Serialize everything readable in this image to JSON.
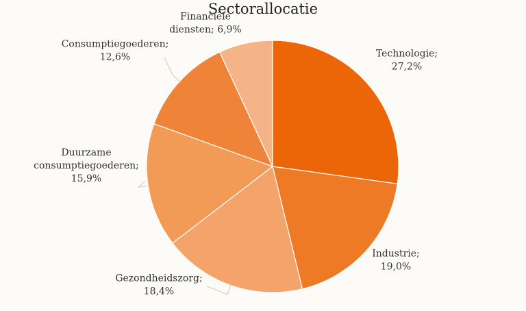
{
  "chart_data": {
    "type": "pie",
    "title": "Sectorallocatie",
    "series": [
      {
        "values": [
          27.2,
          19.0,
          18.4,
          15.9,
          12.6,
          6.9
        ]
      }
    ],
    "categories": [
      "Technologie",
      "Industrie",
      "Gezondheidszorg",
      "Duurzame consumptiegoederen",
      "Consumptiegoederen",
      "Financiële diensten"
    ],
    "labels": [
      [
        "Technologie;",
        "27,2%"
      ],
      [
        "Industrie;",
        "19,0%"
      ],
      [
        "Gezondheidszorg;",
        "18,4%"
      ],
      [
        "Duurzame",
        "consumptiegoederen;",
        "15,9%"
      ],
      [
        "Consumptiegoederen;",
        "12,6%"
      ],
      [
        "Financiële",
        "diensten; 6,9%"
      ]
    ],
    "colors": [
      "#ec6608",
      "#ef7a25",
      "#f4a36b",
      "#f19b57",
      "#ef8439",
      "#f5b388"
    ],
    "start_angle": "12 o'clock",
    "direction": "clockwise",
    "legend": "none"
  }
}
